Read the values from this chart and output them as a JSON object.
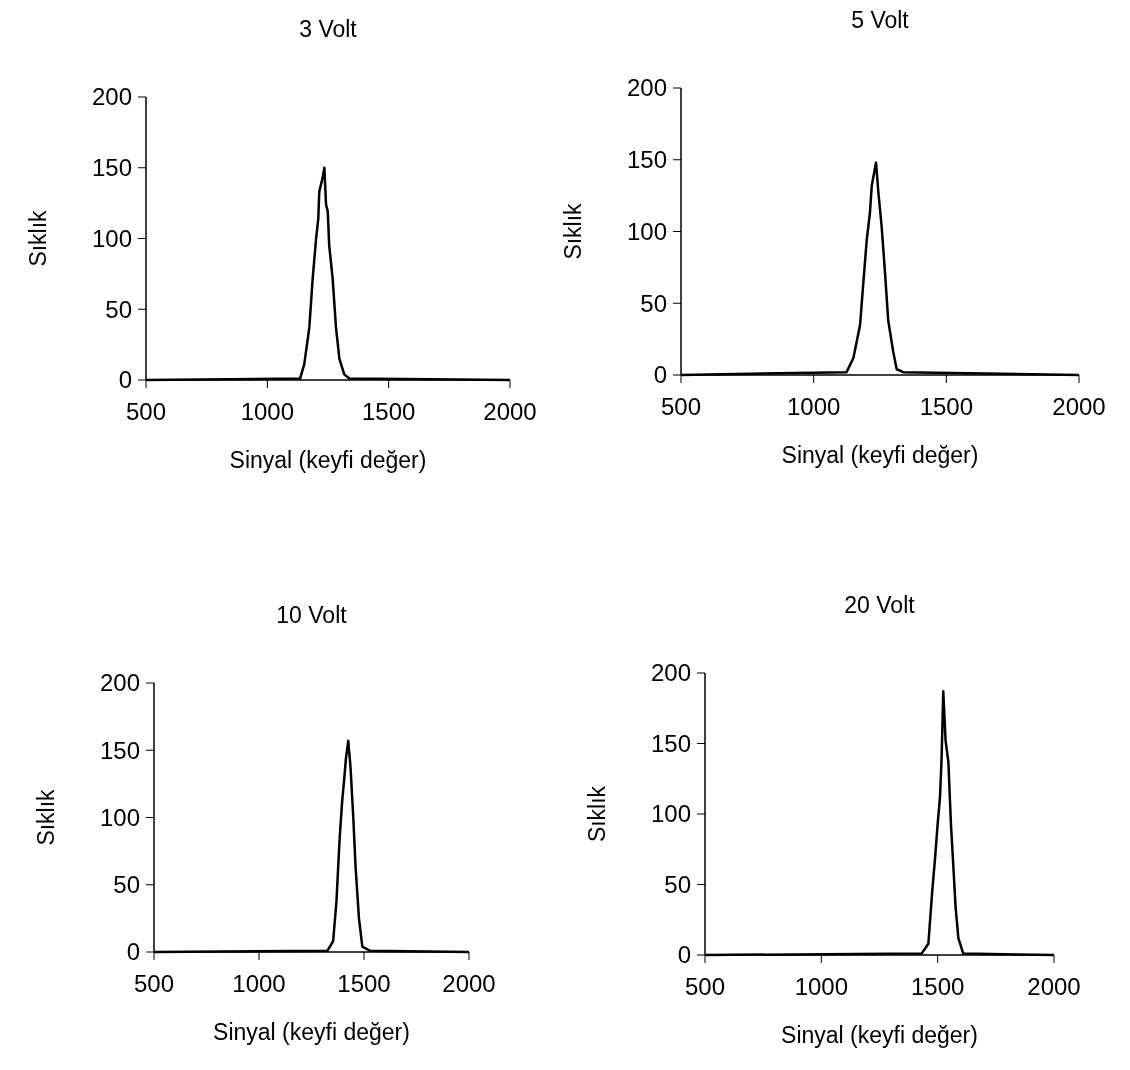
{
  "chart_data": [
    {
      "type": "line",
      "title": "3 Volt",
      "xlabel": "Sinyal (keyfi değer)",
      "ylabel": "Sıklık",
      "xlim": [
        500,
        2000
      ],
      "xticks": [
        500,
        1000,
        1500,
        2000
      ],
      "ylim": [
        0,
        200
      ],
      "yticks": [
        0,
        50,
        100,
        150,
        200
      ],
      "grid": false,
      "marker": "none",
      "line_style": "solid",
      "series": [
        {
          "color": "#000000",
          "x": [
            500,
            1135,
            1152,
            1173,
            1187,
            1201,
            1210,
            1214,
            1228,
            1235,
            1242,
            1249,
            1255,
            1269,
            1283,
            1297,
            1317,
            1338,
            2000
          ],
          "values": [
            0,
            1,
            11,
            37,
            72,
            100,
            114,
            133,
            143,
            150,
            124,
            119,
            95,
            72,
            37,
            15,
            4,
            1,
            0
          ]
        }
      ]
    },
    {
      "type": "line",
      "title": "5 Volt",
      "xlabel": "Sinyal (keyfi değer)",
      "ylabel": "Sıklık",
      "xlim": [
        500,
        2000
      ],
      "xticks": [
        500,
        1000,
        1500,
        2000
      ],
      "ylim": [
        0,
        200
      ],
      "yticks": [
        0,
        50,
        100,
        150,
        200
      ],
      "grid": false,
      "marker": "none",
      "line_style": "solid",
      "series": [
        {
          "color": "#000000",
          "x": [
            500,
            1124,
            1150,
            1175,
            1187,
            1200,
            1212,
            1219,
            1235,
            1244,
            1256,
            1269,
            1281,
            1300,
            1313,
            1338,
            2000
          ],
          "values": [
            0,
            2,
            12,
            35,
            64,
            94,
            113,
            132,
            148,
            127,
            104,
            71,
            38,
            16,
            4,
            2,
            0
          ]
        }
      ]
    },
    {
      "type": "line",
      "title": "10 Volt",
      "xlabel": "Sinyal (keyfi değer)",
      "ylabel": "Sıklık",
      "xlim": [
        500,
        2000
      ],
      "xticks": [
        500,
        1000,
        1500,
        2000
      ],
      "ylim": [
        0,
        200
      ],
      "yticks": [
        0,
        50,
        100,
        150,
        200
      ],
      "grid": false,
      "marker": "none",
      "line_style": "solid",
      "series": [
        {
          "color": "#000000",
          "x": [
            500,
            1326,
            1353,
            1369,
            1377,
            1385,
            1396,
            1406,
            1414,
            1425,
            1436,
            1449,
            1460,
            1476,
            1492,
            1528,
            2000
          ],
          "values": [
            0,
            1,
            8,
            38,
            63,
            87,
            112,
            129,
            144,
            157,
            137,
            100,
            63,
            25,
            4,
            1,
            0
          ]
        }
      ]
    },
    {
      "type": "line",
      "title": "20 Volt",
      "xlabel": "Sinyal (keyfi değer)",
      "ylabel": "Sıklık",
      "xlim": [
        500,
        2000
      ],
      "xticks": [
        500,
        1000,
        1500,
        2000
      ],
      "ylim": [
        0,
        200
      ],
      "yticks": [
        0,
        50,
        100,
        150,
        200
      ],
      "grid": false,
      "marker": "none",
      "line_style": "solid",
      "series": [
        {
          "color": "#000000",
          "x": [
            500,
            1431,
            1460,
            1477,
            1489,
            1500,
            1510,
            1517,
            1524,
            1534,
            1546,
            1557,
            1567,
            1577,
            1589,
            1610,
            2000
          ],
          "values": [
            0,
            1,
            8,
            46,
            69,
            93,
            112,
            140,
            187,
            152,
            137,
            93,
            64,
            34,
            12,
            1,
            0
          ]
        }
      ]
    }
  ]
}
